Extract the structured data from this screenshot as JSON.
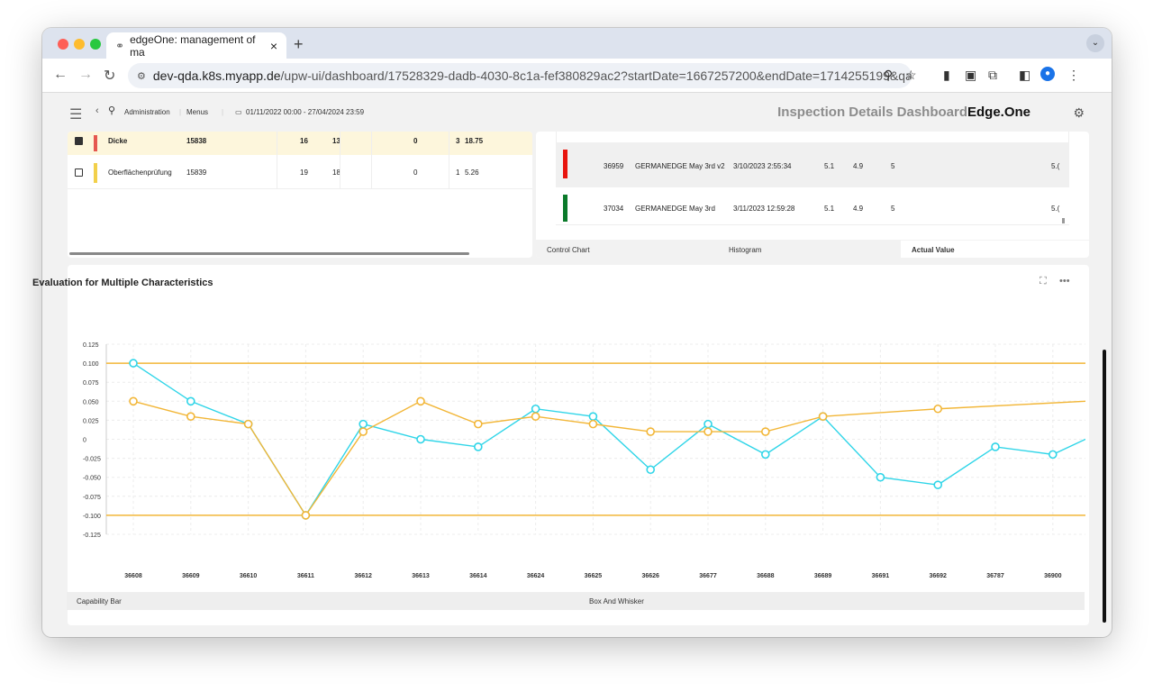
{
  "browser": {
    "tab_title": "edgeOne: management of ma",
    "url_host": "dev-qda.k8s.myapp.de",
    "url_path": "/upw-ui/dashboard/17528329-dadb-4030-8c1a-fef380829ac2?startDate=1667257200&endDate=1714255199&qarPart=..."
  },
  "header": {
    "breadcrumb_admin": "Administration",
    "breadcrumb_menus": "Menus",
    "date_range": "01/11/2022 00:00 - 27/04/2024 23:59",
    "title": "Inspection Details Dashboard",
    "brand": "Edge.One"
  },
  "left_table": {
    "rows": [
      {
        "name": "Dicke",
        "id": "15838",
        "c1": "16",
        "c2": "13",
        "c3": "0",
        "c4": "3",
        "c5": "18.75",
        "color": "#e5574f",
        "selected": true
      },
      {
        "name": "Oberflächenprüfung",
        "id": "15839",
        "c1": "19",
        "c2": "18",
        "c3": "0",
        "c4": "1",
        "c5": "5.26",
        "color": "#f2d04b",
        "selected": false
      }
    ]
  },
  "right_table": {
    "rows": [
      {
        "id": "36959",
        "part": "GERMANEDGE May 3rd v2",
        "date": "3/10/2023 2:55:34",
        "v1": "5.1",
        "v2": "4.9",
        "v3": "5",
        "v4": "5.(",
        "color": "#e8140e"
      },
      {
        "id": "37034",
        "part": "GERMANEDGE May 3rd",
        "date": "3/11/2023 12:59:28",
        "v1": "5.1",
        "v2": "4.9",
        "v3": "5",
        "v4": "5.(",
        "color": "#0a7a2a"
      }
    ],
    "tabs": [
      "Control Chart",
      "Histogram",
      "Actual Value"
    ]
  },
  "chart_panel": {
    "title": "Evaluation for Multiple Characteristics",
    "bottom_tabs": [
      "Capability Bar",
      "Box And Whisker"
    ]
  },
  "chart_data": {
    "type": "line",
    "categories": [
      "36608",
      "36609",
      "36610",
      "36611",
      "36612",
      "36613",
      "36614",
      "36624",
      "36625",
      "36626",
      "36677",
      "36688",
      "36689",
      "36691",
      "36692",
      "36787",
      "36900"
    ],
    "y_ticks": [
      "0.125",
      "0.100",
      "0.075",
      "0.050",
      "0.025",
      "0",
      "-0.025",
      "-0.050",
      "-0.075",
      "-0.100",
      "-0.125"
    ],
    "ylim": [
      -0.125,
      0.125
    ],
    "limits": [
      0.1,
      -0.1
    ],
    "series": [
      {
        "color": "#2fd5e8",
        "values": [
          0.1,
          0.05,
          0.02,
          -0.1,
          0.02,
          0.0,
          -0.01,
          0.04,
          0.03,
          -0.04,
          0.02,
          -0.02,
          0.03,
          -0.05,
          -0.06,
          -0.01,
          -0.02
        ],
        "tail": -0.0
      },
      {
        "color": "#f2b637",
        "values": [
          0.05,
          0.03,
          0.02,
          -0.1,
          0.01,
          0.05,
          0.02,
          0.03,
          0.02,
          0.01,
          0.01,
          0.01,
          0.03,
          null,
          0.04,
          null,
          null
        ],
        "tail": 0.05
      }
    ],
    "grid": true
  }
}
